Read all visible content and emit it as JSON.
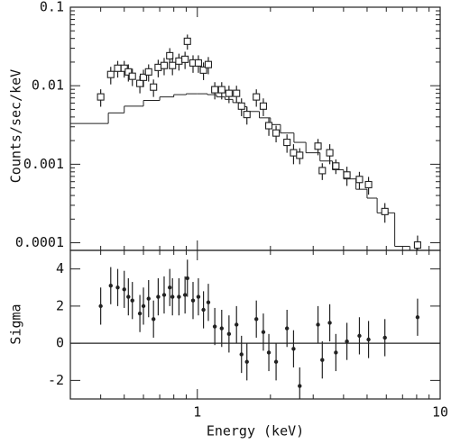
{
  "chart_data": [
    {
      "type": "scatter",
      "ylabel": "Counts/sec/keV",
      "xlog": true,
      "ylog": true,
      "xlim": [
        0.3,
        10
      ],
      "ylim": [
        8e-05,
        0.1
      ],
      "xticks": [
        1,
        10
      ],
      "xminorticks": [
        0.4,
        0.5,
        0.6,
        0.7,
        0.8,
        0.9,
        2,
        3,
        4,
        5,
        6,
        7,
        8,
        9
      ],
      "yticks": [
        0.1,
        0.01,
        0.001,
        0.0001
      ],
      "yminorticks": [
        0.0002,
        0.0003,
        0.0004,
        0.0005,
        0.0006,
        0.0007,
        0.0008,
        0.0009,
        0.002,
        0.003,
        0.004,
        0.005,
        0.006,
        0.007,
        0.008,
        0.009,
        0.02,
        0.03,
        0.04,
        0.05,
        0.06,
        0.07,
        0.08,
        0.09
      ],
      "color": "#222222",
      "x": [
        0.4,
        0.44,
        0.47,
        0.5,
        0.52,
        0.54,
        0.58,
        0.6,
        0.63,
        0.66,
        0.69,
        0.73,
        0.77,
        0.79,
        0.84,
        0.89,
        0.91,
        0.96,
        1.01,
        1.06,
        1.11,
        1.18,
        1.26,
        1.35,
        1.45,
        1.52,
        1.6,
        1.75,
        1.87,
        1.97,
        2.11,
        2.34,
        2.49,
        2.64,
        3.14,
        3.27,
        3.51,
        3.72,
        4.13,
        4.65,
        5.07,
        5.92,
        8.07
      ],
      "values": [
        0.0072,
        0.0139,
        0.0167,
        0.0167,
        0.015,
        0.0132,
        0.0107,
        0.0128,
        0.015,
        0.0096,
        0.0171,
        0.0181,
        0.0241,
        0.0181,
        0.0206,
        0.0217,
        0.0368,
        0.0195,
        0.0195,
        0.0158,
        0.0186,
        0.0089,
        0.0089,
        0.008,
        0.008,
        0.0055,
        0.0043,
        0.0072,
        0.0055,
        0.0031,
        0.0025,
        0.0019,
        0.0014,
        0.0013,
        0.0017,
        0.00083,
        0.0014,
        0.00095,
        0.00073,
        0.00064,
        0.00055,
        0.00025,
        9.35e-05
      ],
      "errors": [
        0.0018,
        0.0035,
        0.004,
        0.004,
        0.0037,
        0.0033,
        0.0027,
        0.0032,
        0.0037,
        0.0024,
        0.0043,
        0.0045,
        0.006,
        0.0045,
        0.005,
        0.0054,
        0.008,
        0.0049,
        0.0049,
        0.004,
        0.0046,
        0.0022,
        0.0022,
        0.002,
        0.002,
        0.0014,
        0.0011,
        0.0018,
        0.0014,
        0.0008,
        0.0006,
        0.0005,
        0.0004,
        0.0003,
        0.0004,
        0.0002,
        0.0004,
        0.0002,
        0.0002,
        0.00016,
        0.00014,
        7e-05,
        3e-05
      ],
      "model": {
        "bins": [
          0.3,
          0.43,
          0.5,
          0.6,
          0.7,
          0.8,
          0.9,
          1.0,
          1.1,
          1.2,
          1.3,
          1.4,
          1.5,
          1.6,
          1.8,
          2.0,
          2.2,
          2.5,
          2.8,
          3.2,
          3.6,
          4.0,
          4.5,
          5.0,
          5.5,
          6.5,
          7.5
        ],
        "values": [
          0.0033,
          0.0045,
          0.0055,
          0.0065,
          0.0072,
          0.0077,
          0.0079,
          0.0079,
          0.0077,
          0.0072,
          0.0067,
          0.0061,
          0.0054,
          0.0047,
          0.0039,
          0.0032,
          0.0025,
          0.0019,
          0.0014,
          0.0011,
          0.00085,
          0.00065,
          0.00048,
          0.00037,
          0.00024,
          9e-05
        ]
      }
    },
    {
      "type": "scatter",
      "xlabel": "Energy (keV)",
      "ylabel": "Sigma",
      "xlog": true,
      "xlim": [
        0.3,
        10
      ],
      "ylim": [
        -3,
        5
      ],
      "xticks": [
        1,
        10
      ],
      "xminorticks": [
        0.4,
        0.5,
        0.6,
        0.7,
        0.8,
        0.9,
        2,
        3,
        4,
        5,
        6,
        7,
        8,
        9
      ],
      "yticks": [
        -2,
        0,
        2,
        4
      ],
      "refline": 0,
      "color": "#222222",
      "x": [
        0.4,
        0.44,
        0.47,
        0.5,
        0.52,
        0.54,
        0.58,
        0.6,
        0.63,
        0.66,
        0.69,
        0.73,
        0.77,
        0.79,
        0.84,
        0.89,
        0.91,
        0.96,
        1.01,
        1.06,
        1.11,
        1.18,
        1.26,
        1.35,
        1.45,
        1.52,
        1.6,
        1.75,
        1.87,
        1.97,
        2.11,
        2.34,
        2.49,
        2.64,
        3.14,
        3.27,
        3.51,
        3.72,
        4.13,
        4.65,
        5.07,
        5.92,
        8.07
      ],
      "values": [
        2.0,
        3.1,
        3.0,
        2.9,
        2.5,
        2.3,
        1.6,
        2.0,
        2.4,
        1.3,
        2.5,
        2.6,
        3.0,
        2.5,
        2.5,
        2.6,
        3.5,
        2.3,
        2.5,
        1.8,
        2.2,
        0.9,
        0.8,
        0.5,
        1.0,
        -0.6,
        -1.0,
        1.3,
        0.6,
        -0.5,
        -1.0,
        0.8,
        -0.3,
        -2.3,
        1.0,
        -0.9,
        1.1,
        -0.5,
        0.1,
        0.4,
        0.2,
        0.3,
        1.4
      ],
      "error": 1
    }
  ]
}
